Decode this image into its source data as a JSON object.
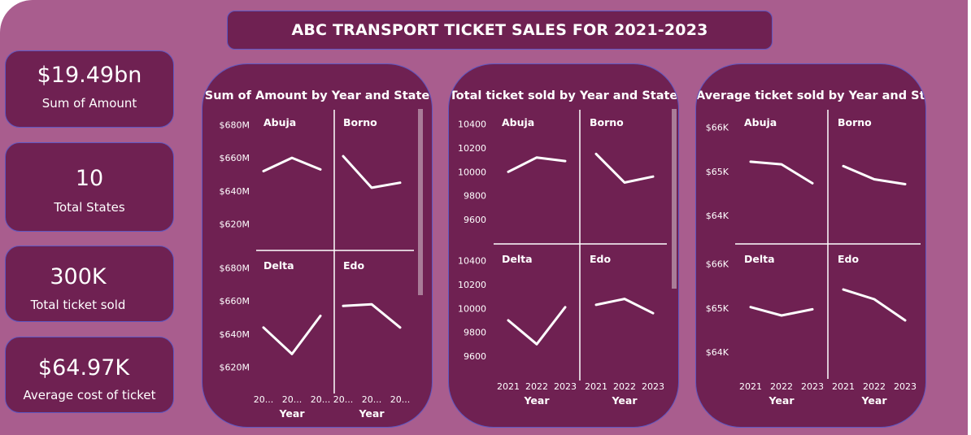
{
  "header": {
    "title": "ABC TRANSPORT TICKET SALES FOR 2021-2023"
  },
  "kpis": [
    {
      "value": "$19.49bn",
      "label": "Sum of Amount"
    },
    {
      "value": "10",
      "label": "Total States"
    },
    {
      "value": "300K",
      "label": "Total ticket sold"
    },
    {
      "value": "$64.97K",
      "label": "Average cost of ticket"
    }
  ],
  "colors": {
    "canvas": "#a95d8e",
    "card": "#6f2152",
    "border": "#5e57c2",
    "line": "#ffffff"
  },
  "chart_data": [
    {
      "type": "line",
      "title": "Sum of Amount by Year and State",
      "xlabel": "Year",
      "x": [
        "2021",
        "2022",
        "2023"
      ],
      "x_tick_labels": [
        "20...",
        "20...",
        "20..."
      ],
      "y_ticks": [
        620,
        640,
        660,
        680
      ],
      "y_tick_labels": [
        "$620M",
        "$640M",
        "$660M",
        "$680M"
      ],
      "ylim": [
        613,
        689
      ],
      "grid": false,
      "panels": [
        {
          "name": "Abuja",
          "values": [
            652,
            660,
            653
          ]
        },
        {
          "name": "Borno",
          "values": [
            661,
            642,
            645
          ]
        },
        {
          "name": "Delta",
          "values": [
            644,
            628,
            651
          ]
        },
        {
          "name": "Edo",
          "values": [
            657,
            658,
            644
          ]
        }
      ]
    },
    {
      "type": "line",
      "title": "Total ticket sold by Year and State",
      "xlabel": "Year",
      "x": [
        "2021",
        "2022",
        "2023"
      ],
      "x_tick_labels": [
        "2021",
        "2022",
        "2023"
      ],
      "y_ticks": [
        9600,
        9800,
        10000,
        10200,
        10400
      ],
      "y_tick_labels": [
        "9600",
        "9800",
        "10000",
        "10200",
        "10400"
      ],
      "ylim": [
        9450,
        10520
      ],
      "grid": false,
      "panels": [
        {
          "name": "Abuja",
          "values": [
            10000,
            10120,
            10090
          ]
        },
        {
          "name": "Borno",
          "values": [
            10150,
            9910,
            9960
          ]
        },
        {
          "name": "Delta",
          "values": [
            9900,
            9700,
            10010
          ]
        },
        {
          "name": "Edo",
          "values": [
            10030,
            10080,
            9960
          ]
        }
      ]
    },
    {
      "type": "line",
      "title": "Average ticket sold by Year and State",
      "xlabel": "Year",
      "x": [
        "2021",
        "2022",
        "2023"
      ],
      "x_tick_labels": [
        "2021",
        "2022",
        "2023"
      ],
      "y_ticks": [
        64000,
        65000,
        66000
      ],
      "y_tick_labels": [
        "$64K",
        "$65K",
        "$66K"
      ],
      "ylim": [
        63500,
        66400
      ],
      "grid": false,
      "panels": [
        {
          "name": "Abuja",
          "values": [
            65220,
            65160,
            64730
          ]
        },
        {
          "name": "Borno",
          "values": [
            65120,
            64820,
            64710
          ]
        },
        {
          "name": "Delta",
          "values": [
            65020,
            64830,
            64970
          ]
        },
        {
          "name": "Edo",
          "values": [
            65420,
            65200,
            64720
          ]
        }
      ]
    }
  ]
}
